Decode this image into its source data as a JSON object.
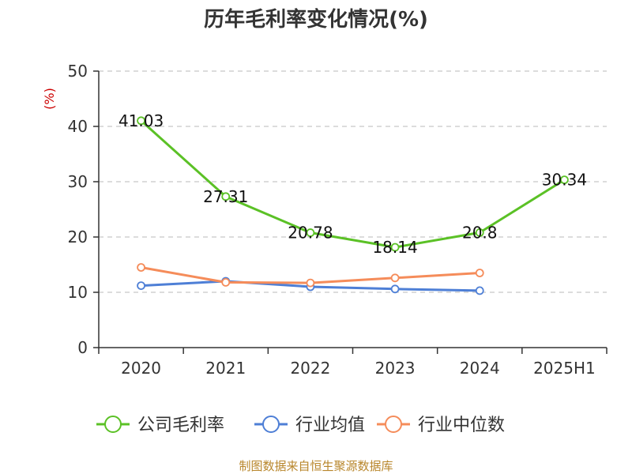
{
  "chart_data": {
    "type": "line",
    "title": "历年毛利率变化情况(%)",
    "ylabel": "(%)",
    "ylim": [
      0,
      50
    ],
    "yticks": [
      0,
      10,
      20,
      30,
      40,
      50
    ],
    "categories": [
      "2020",
      "2021",
      "2022",
      "2023",
      "2024",
      "2025H1"
    ],
    "grid": true,
    "legend_position": "bottom",
    "series": [
      {
        "name": "公司毛利率",
        "color": "#5bc126",
        "values": [
          41.03,
          27.31,
          20.78,
          18.14,
          20.8,
          30.34
        ],
        "labels": [
          "41.03",
          "27.31",
          "20.78",
          "18.14",
          "20.8",
          "30.34"
        ]
      },
      {
        "name": "行业均值",
        "color": "#4e7fd6",
        "values": [
          11.2,
          12.0,
          11.0,
          10.6,
          10.3,
          null
        ]
      },
      {
        "name": "行业中位数",
        "color": "#f58c5a",
        "values": [
          14.5,
          11.8,
          11.7,
          12.6,
          13.5,
          null
        ]
      }
    ]
  },
  "source_text": "制图数据来自恒生聚源数据库",
  "colors": {
    "unit_label": "#cc0000",
    "source_text": "#b8862b",
    "grid": "#c8c8c8",
    "axis": "#333333"
  }
}
